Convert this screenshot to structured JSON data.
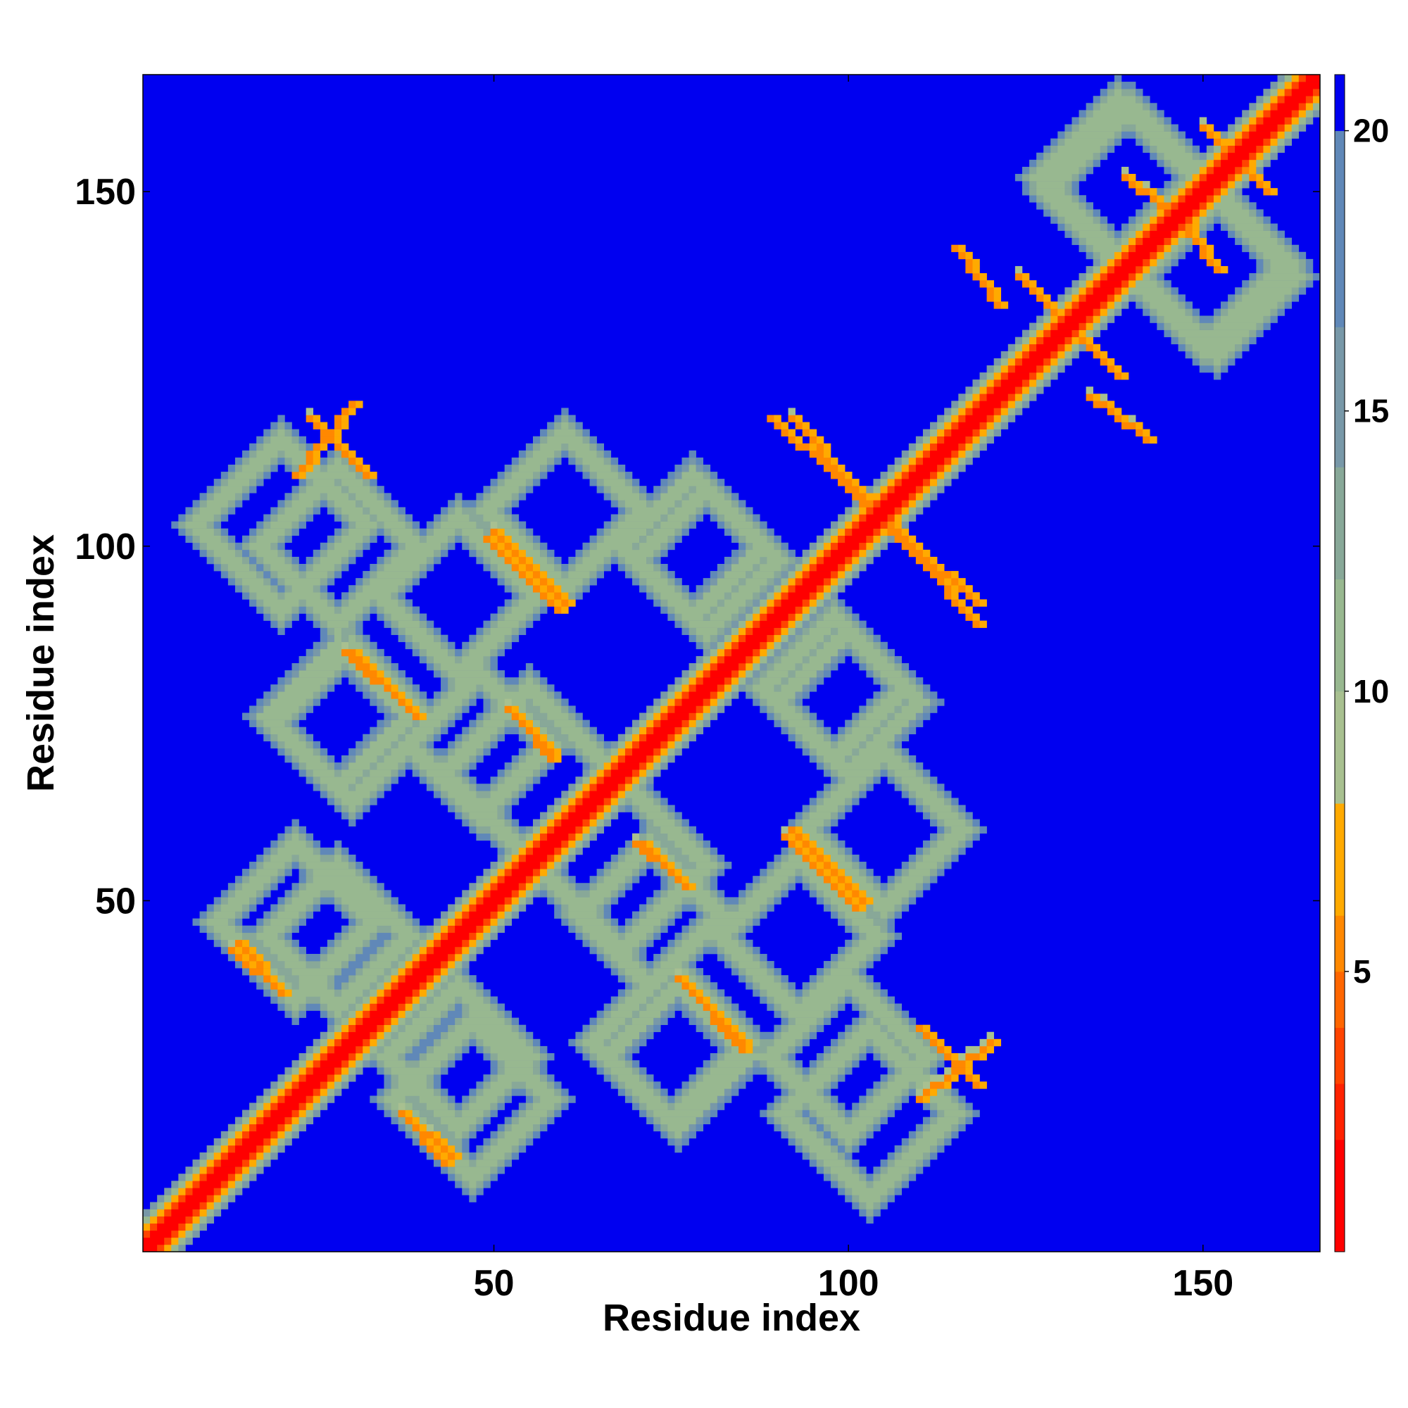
{
  "chart_data": {
    "type": "heatmap",
    "title": "",
    "xlabel": "Residue index",
    "ylabel": "Residue index",
    "n_residues": 166,
    "xlim": [
      1,
      166
    ],
    "ylim": [
      1,
      166
    ],
    "x_ticks": [
      50,
      100,
      150
    ],
    "y_ticks": [
      50,
      100,
      150
    ],
    "colorbar": {
      "ticks": [
        5,
        10,
        15,
        20
      ],
      "range": [
        0,
        21
      ],
      "colors": [
        "#ff0000",
        "#ff2200",
        "#ff4400",
        "#ff6600",
        "#ff8800",
        "#ffaa00",
        "#a8c090",
        "#98b890",
        "#88a898",
        "#7898a8",
        "#6088b8",
        "#0000f0"
      ]
    },
    "background_value": 21,
    "diagonal": {
      "core_value": 1,
      "shoulder_value": 4,
      "fade_value": 8
    },
    "contact_loops": [
      {
        "name": "helix-pair-A",
        "center": [
          20,
          103
        ],
        "size": 12,
        "value": 11
      },
      {
        "name": "helix-pair-B",
        "center": [
          45,
          93
        ],
        "size": 11,
        "value": 11
      },
      {
        "name": "helix-pair-C",
        "center": [
          28,
          76
        ],
        "size": 10,
        "value": 12
      },
      {
        "name": "helix-pair-D",
        "center": [
          55,
          68
        ],
        "size": 12,
        "value": 11
      },
      {
        "name": "helix-pair-E",
        "center": [
          22,
          47
        ],
        "size": 11,
        "value": 11
      },
      {
        "name": "helix-pair-F",
        "center": [
          45,
          28
        ],
        "size": 10,
        "value": 11
      },
      {
        "name": "helix-pair-G",
        "center": [
          75,
          30
        ],
        "size": 11,
        "value": 11
      },
      {
        "name": "helix-pair-H",
        "center": [
          100,
          28
        ],
        "size": 11,
        "value": 11
      },
      {
        "name": "helix-pair-I",
        "center": [
          105,
          60
        ],
        "size": 11,
        "value": 11
      },
      {
        "name": "helix-pair-J",
        "center": [
          80,
          98
        ],
        "size": 10,
        "value": 11
      },
      {
        "name": "helix-pair-K",
        "center": [
          72,
          48
        ],
        "size": 10,
        "value": 11
      },
      {
        "name": "helix-pair-L",
        "center": [
          100,
          78
        ],
        "size": 10,
        "value": 12
      },
      {
        "name": "helix-pair-M",
        "center": [
          140,
          150
        ],
        "size": 12,
        "value": 11
      },
      {
        "name": "helix-pair-N",
        "center": [
          152,
          138
        ],
        "size": 11,
        "value": 11
      }
    ],
    "antiparallel_contacts": [
      {
        "from": [
          24,
          118
        ],
        "to": [
          32,
          110
        ],
        "value": 6
      },
      {
        "from": [
          50,
          102
        ],
        "to": [
          60,
          92
        ],
        "value": 6
      },
      {
        "from": [
          29,
          85
        ],
        "to": [
          38,
          77
        ],
        "value": 6
      },
      {
        "from": [
          52,
          77
        ],
        "to": [
          58,
          71
        ],
        "value": 6
      },
      {
        "from": [
          13,
          43
        ],
        "to": [
          20,
          37
        ],
        "value": 6
      },
      {
        "from": [
          37,
          20
        ],
        "to": [
          44,
          14
        ],
        "value": 6
      },
      {
        "from": [
          70,
          58
        ],
        "to": [
          76,
          53
        ],
        "value": 6
      },
      {
        "from": [
          91,
          59
        ],
        "to": [
          101,
          49
        ],
        "value": 6
      },
      {
        "from": [
          76,
          39
        ],
        "to": [
          85,
          30
        ],
        "value": 6
      },
      {
        "from": [
          92,
          118
        ],
        "to": [
          118,
          89
        ],
        "value": 6
      },
      {
        "from": [
          110,
          22
        ],
        "to": [
          120,
          30
        ],
        "value": 6
      },
      {
        "from": [
          124,
          138
        ],
        "to": [
          136,
          126
        ],
        "value": 6
      },
      {
        "from": [
          134,
          121
        ],
        "to": [
          142,
          115
        ],
        "value": 6
      },
      {
        "from": [
          139,
          152
        ],
        "to": [
          148,
          145
        ],
        "value": 6
      },
      {
        "from": [
          150,
          159
        ],
        "to": [
          156,
          153
        ],
        "value": 6
      }
    ]
  }
}
